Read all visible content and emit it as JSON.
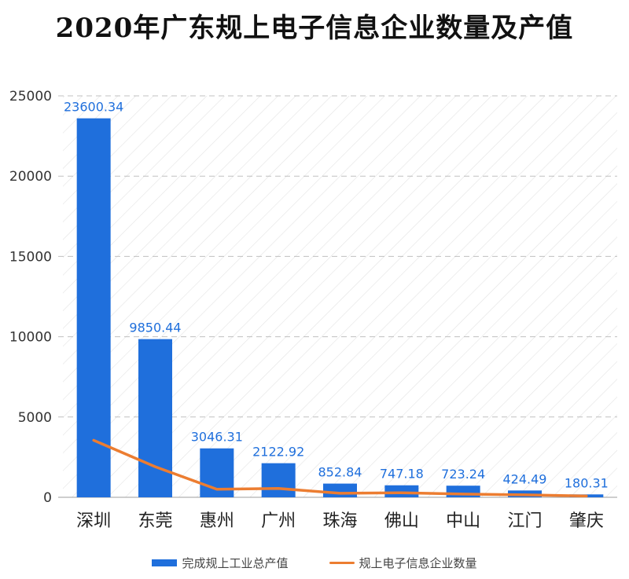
{
  "chart_data": {
    "type": "bar",
    "title": "2020年广东规上电子信息企业数量及产值",
    "categories": [
      "深圳",
      "东莞",
      "惠州",
      "广州",
      "珠海",
      "佛山",
      "中山",
      "江门",
      "肇庆"
    ],
    "series": [
      {
        "name": "完成规上工业总产值",
        "type": "bar",
        "color": "#1f6fdc",
        "values": [
          23600.34,
          9850.44,
          3046.31,
          2122.92,
          852.84,
          747.18,
          723.24,
          424.49,
          180.31
        ],
        "labels": [
          "23600.34",
          "9850.44",
          "3046.31",
          "2122.92",
          "852.84",
          "747.18",
          "723.24",
          "424.49",
          "180.31"
        ]
      },
      {
        "name": "规上电子信息企业数量",
        "type": "line",
        "color": "#ec7d31",
        "values": [
          3550,
          1900,
          500,
          550,
          250,
          280,
          200,
          150,
          80
        ]
      }
    ],
    "ylim": [
      0,
      25000
    ],
    "yticks": [
      "0",
      "5000",
      "10000",
      "15000",
      "20000",
      "25000"
    ],
    "grid": true,
    "legend_position": "bottom"
  }
}
